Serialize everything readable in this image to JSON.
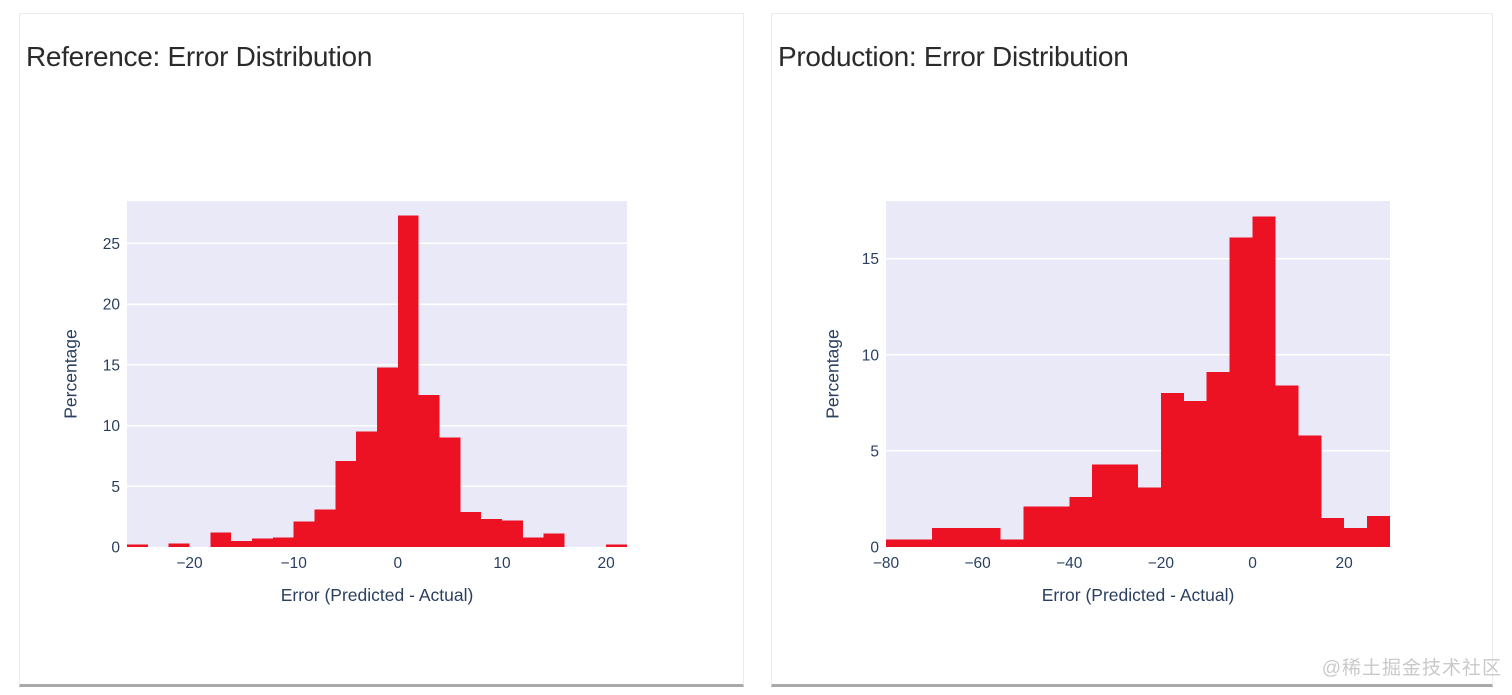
{
  "page": {
    "watermark": "@稀土掘金技术社区",
    "watermark_color": "#c9c9c9",
    "background_color": "#ffffff",
    "card_border_color": "#ebebeb",
    "card_bottom_edge_color": "#a9a9a9"
  },
  "chart_data": [
    {
      "type": "bar",
      "subtype": "histogram",
      "title": "Reference: Error Distribution",
      "xlabel": "Error (Predicted - Actual)",
      "ylabel": "Percentage",
      "legend": "none",
      "grid": "horizontal white lines, lavender plot background",
      "xlim": [
        -26,
        22
      ],
      "ylim": [
        0,
        28.5
      ],
      "xticks": [
        -20,
        -10,
        0,
        10,
        20
      ],
      "yticks": [
        0,
        5,
        10,
        15,
        20,
        25
      ],
      "bin_width": 2,
      "bins": [
        {
          "from": -26,
          "pct": 0.2
        },
        {
          "from": -24,
          "pct": 0
        },
        {
          "from": -22,
          "pct": 0.3
        },
        {
          "from": -20,
          "pct": 0
        },
        {
          "from": -18,
          "pct": 1.2
        },
        {
          "from": -16,
          "pct": 0.5
        },
        {
          "from": -14,
          "pct": 0.7
        },
        {
          "from": -12,
          "pct": 0.8
        },
        {
          "from": -10,
          "pct": 2.1
        },
        {
          "from": -8,
          "pct": 3.1
        },
        {
          "from": -6,
          "pct": 7.1
        },
        {
          "from": -4,
          "pct": 9.5
        },
        {
          "from": -2,
          "pct": 14.8
        },
        {
          "from": 0,
          "pct": 27.3
        },
        {
          "from": 2,
          "pct": 12.5
        },
        {
          "from": 4,
          "pct": 9.0
        },
        {
          "from": 6,
          "pct": 2.9
        },
        {
          "from": 8,
          "pct": 2.3
        },
        {
          "from": 10,
          "pct": 2.2
        },
        {
          "from": 12,
          "pct": 0.8
        },
        {
          "from": 14,
          "pct": 1.1
        },
        {
          "from": 16,
          "pct": 0
        },
        {
          "from": 18,
          "pct": 0
        },
        {
          "from": 20,
          "pct": 0.2
        }
      ],
      "colors": {
        "bar": "#ec1224",
        "plot_bg": "#e9e9f7",
        "grid": "#ffffff",
        "axis_text": "#2a3f5f",
        "title_text": "#2b2b2b"
      }
    },
    {
      "type": "bar",
      "subtype": "histogram",
      "title": "Production: Error Distribution",
      "xlabel": "Error (Predicted - Actual)",
      "ylabel": "Percentage",
      "legend": "none",
      "grid": "horizontal white lines, lavender plot background",
      "xlim": [
        -80,
        30
      ],
      "ylim": [
        0,
        18
      ],
      "xticks": [
        -80,
        -60,
        -40,
        -20,
        0,
        20
      ],
      "yticks": [
        0,
        5,
        10,
        15
      ],
      "bin_width": 5,
      "bins": [
        {
          "from": -80,
          "pct": 0.4
        },
        {
          "from": -75,
          "pct": 0.4
        },
        {
          "from": -70,
          "pct": 1.0
        },
        {
          "from": -65,
          "pct": 1.0
        },
        {
          "from": -60,
          "pct": 1.0
        },
        {
          "from": -55,
          "pct": 0.4
        },
        {
          "from": -50,
          "pct": 2.1
        },
        {
          "from": -45,
          "pct": 2.1
        },
        {
          "from": -40,
          "pct": 2.6
        },
        {
          "from": -35,
          "pct": 4.3
        },
        {
          "from": -30,
          "pct": 4.3
        },
        {
          "from": -25,
          "pct": 3.1
        },
        {
          "from": -20,
          "pct": 8.0
        },
        {
          "from": -15,
          "pct": 7.6
        },
        {
          "from": -10,
          "pct": 9.1
        },
        {
          "from": -5,
          "pct": 16.1
        },
        {
          "from": 0,
          "pct": 17.2
        },
        {
          "from": 5,
          "pct": 8.4
        },
        {
          "from": 10,
          "pct": 5.8
        },
        {
          "from": 15,
          "pct": 1.5
        },
        {
          "from": 20,
          "pct": 1.0
        },
        {
          "from": 25,
          "pct": 1.6
        }
      ],
      "colors": {
        "bar": "#ec1224",
        "plot_bg": "#e9e9f7",
        "grid": "#ffffff",
        "axis_text": "#2a3f5f",
        "title_text": "#2b2b2b"
      }
    }
  ]
}
